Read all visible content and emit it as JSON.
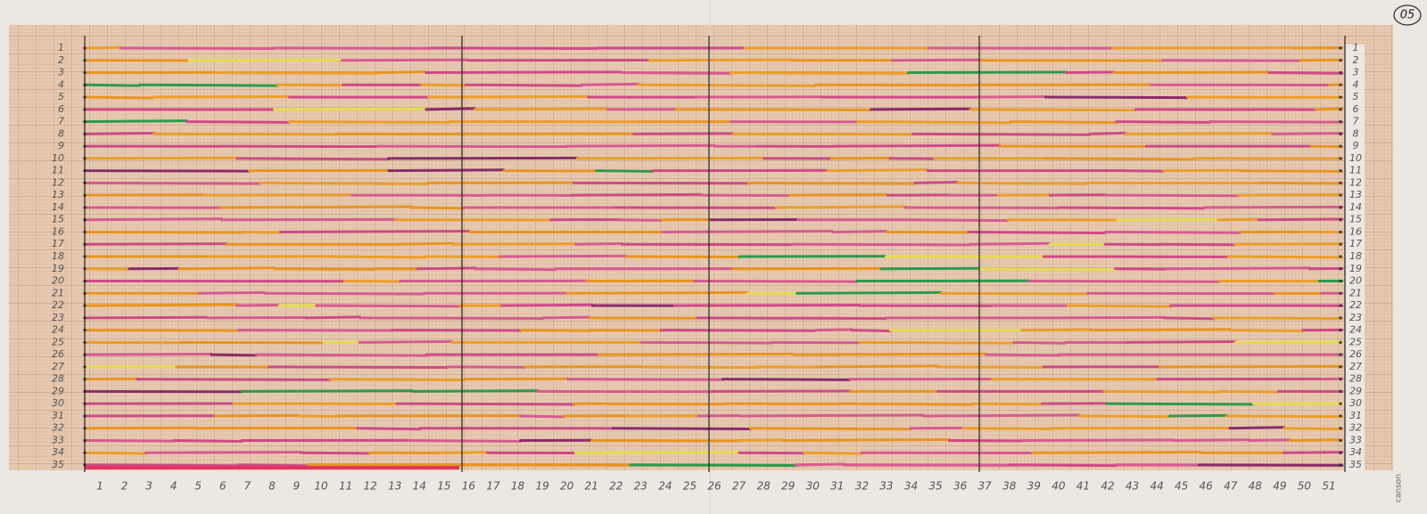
{
  "badge": "05",
  "row_labels_left": [
    "1",
    "2",
    "3",
    "4",
    "5",
    "6",
    "7",
    "8",
    "9",
    "10",
    "11",
    "12",
    "13",
    "14",
    "15",
    "16",
    "17",
    "18",
    "19",
    "20",
    "21",
    "22",
    "23",
    "24",
    "25",
    "26",
    "27",
    "28",
    "29",
    "30",
    "31",
    "32",
    "33",
    "34",
    "35"
  ],
  "row_labels_right": [
    "1",
    "2",
    "3",
    "4",
    "5",
    "6",
    "7",
    "8",
    "9",
    "10",
    "11",
    "12",
    "13",
    "14",
    "15",
    "16",
    "17",
    "18",
    "19",
    "20",
    "21",
    "22",
    "23",
    "24",
    "25",
    "26",
    "27",
    "28",
    "29",
    "30",
    "31",
    "32",
    "33",
    "34",
    "35"
  ],
  "column_labels": [
    "1",
    "2",
    "3",
    "4",
    "5",
    "6",
    "7",
    "8",
    "9",
    "10",
    "11",
    "12",
    "13",
    "14",
    "15",
    "16",
    "17",
    "18",
    "19",
    "20",
    "21",
    "22",
    "23",
    "24",
    "25",
    "26",
    "27",
    "28",
    "29",
    "30",
    "31",
    "32",
    "33",
    "34",
    "35",
    "36",
    "37",
    "38",
    "39",
    "40",
    "41",
    "42",
    "43",
    "44",
    "45",
    "46",
    "47",
    "48",
    "49",
    "50",
    "51"
  ],
  "brand": "canson"
}
